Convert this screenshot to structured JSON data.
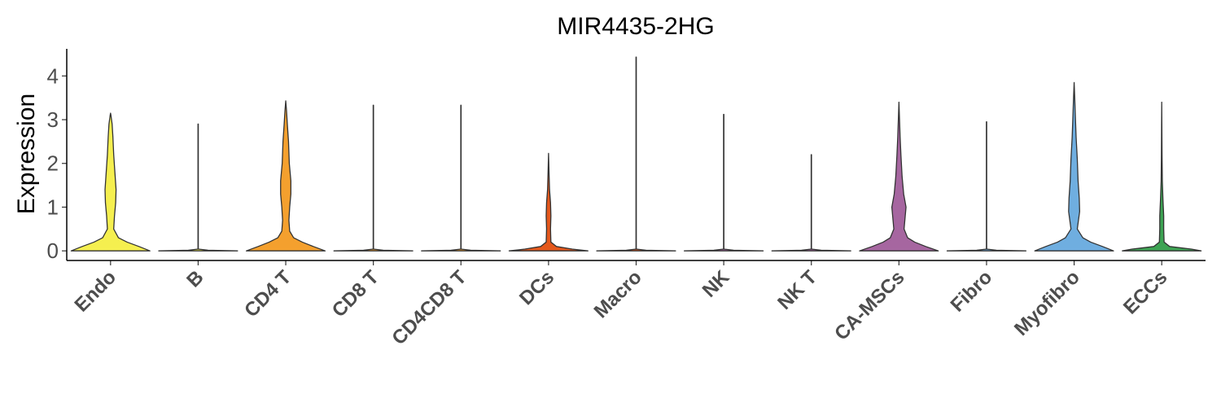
{
  "chart_data": {
    "type": "violin",
    "title": "MIR4435-2HG",
    "xlabel": "",
    "ylabel": "Expression",
    "ylim": [
      -0.22,
      4.62
    ],
    "yticks": [
      0,
      1,
      2,
      3,
      4
    ],
    "grid": false,
    "legend": "none",
    "categories": [
      "Endo",
      "B",
      "CD4 T",
      "CD8 T",
      "CD4CD8 T",
      "DCs",
      "Macro",
      "NK",
      "NK T",
      "CA-MSCs",
      "Fibro",
      "Myofibro",
      "ECCs"
    ],
    "max_values": [
      3.15,
      2.9,
      3.43,
      3.33,
      3.33,
      2.23,
      4.43,
      3.12,
      2.2,
      3.4,
      2.95,
      3.85,
      3.4
    ],
    "series": [
      {
        "category": "Endo",
        "color": "#F5EF4F",
        "profile": [
          [
            0,
            1.0
          ],
          [
            0.1,
            0.72
          ],
          [
            0.2,
            0.42
          ],
          [
            0.3,
            0.2
          ],
          [
            0.5,
            0.08
          ],
          [
            0.8,
            0.1
          ],
          [
            1.1,
            0.13
          ],
          [
            1.4,
            0.14
          ],
          [
            1.8,
            0.11
          ],
          [
            2.2,
            0.08
          ],
          [
            2.6,
            0.06
          ],
          [
            2.9,
            0.04
          ],
          [
            3.1,
            0.01
          ],
          [
            3.15,
            0
          ]
        ]
      },
      {
        "category": "B",
        "color": "#F5EF4F",
        "profile": [
          [
            0,
            1.0
          ],
          [
            0.015,
            0.25
          ],
          [
            0.04,
            0.004
          ],
          [
            2.9,
            0.004
          ],
          [
            2.9,
            0
          ]
        ]
      },
      {
        "category": "CD4 T",
        "color": "#F4A02E",
        "profile": [
          [
            0,
            1.0
          ],
          [
            0.1,
            0.7
          ],
          [
            0.2,
            0.42
          ],
          [
            0.3,
            0.2
          ],
          [
            0.45,
            0.1
          ],
          [
            0.7,
            0.08
          ],
          [
            1.0,
            0.1
          ],
          [
            1.3,
            0.13
          ],
          [
            1.6,
            0.13
          ],
          [
            2.0,
            0.09
          ],
          [
            2.5,
            0.07
          ],
          [
            2.9,
            0.04
          ],
          [
            3.2,
            0.02
          ],
          [
            3.43,
            0
          ]
        ]
      },
      {
        "category": "CD8 T",
        "color": "#F4A02E",
        "profile": [
          [
            0,
            1.0
          ],
          [
            0.015,
            0.25
          ],
          [
            0.04,
            0.004
          ],
          [
            3.33,
            0.004
          ],
          [
            3.33,
            0
          ]
        ]
      },
      {
        "category": "CD4CD8 T",
        "color": "#F4A02E",
        "profile": [
          [
            0,
            1.0
          ],
          [
            0.015,
            0.25
          ],
          [
            0.04,
            0.004
          ],
          [
            3.33,
            0.004
          ],
          [
            3.33,
            0
          ]
        ]
      },
      {
        "category": "DCs",
        "color": "#E4571B",
        "profile": [
          [
            0,
            1.0
          ],
          [
            0.04,
            0.6
          ],
          [
            0.1,
            0.2
          ],
          [
            0.2,
            0.06
          ],
          [
            0.5,
            0.05
          ],
          [
            0.8,
            0.06
          ],
          [
            1.1,
            0.05
          ],
          [
            1.4,
            0.025
          ],
          [
            1.8,
            0.012
          ],
          [
            2.23,
            0
          ]
        ]
      },
      {
        "category": "Macro",
        "color": "#E4571B",
        "profile": [
          [
            0,
            1.0
          ],
          [
            0.015,
            0.25
          ],
          [
            0.04,
            0.004
          ],
          [
            4.43,
            0.004
          ],
          [
            4.43,
            0
          ]
        ]
      },
      {
        "category": "NK",
        "color": "#A666A0",
        "profile": [
          [
            0,
            1.0
          ],
          [
            0.015,
            0.25
          ],
          [
            0.04,
            0.004
          ],
          [
            3.12,
            0.004
          ],
          [
            3.12,
            0
          ]
        ]
      },
      {
        "category": "NK T",
        "color": "#A666A0",
        "profile": [
          [
            0,
            1.0
          ],
          [
            0.015,
            0.25
          ],
          [
            0.04,
            0.004
          ],
          [
            2.2,
            0.004
          ],
          [
            2.2,
            0
          ]
        ]
      },
      {
        "category": "CA-MSCs",
        "color": "#A666A0",
        "profile": [
          [
            0,
            1.0
          ],
          [
            0.1,
            0.68
          ],
          [
            0.2,
            0.4
          ],
          [
            0.3,
            0.22
          ],
          [
            0.5,
            0.13
          ],
          [
            0.8,
            0.16
          ],
          [
            1.0,
            0.18
          ],
          [
            1.3,
            0.12
          ],
          [
            1.7,
            0.08
          ],
          [
            2.2,
            0.05
          ],
          [
            2.6,
            0.03
          ],
          [
            3.0,
            0.015
          ],
          [
            3.4,
            0
          ]
        ]
      },
      {
        "category": "Fibro",
        "color": "#6FAEE0",
        "profile": [
          [
            0,
            1.0
          ],
          [
            0.015,
            0.25
          ],
          [
            0.04,
            0.004
          ],
          [
            2.95,
            0.004
          ],
          [
            2.95,
            0
          ]
        ]
      },
      {
        "category": "Myofibro",
        "color": "#6FAEE0",
        "profile": [
          [
            0,
            1.0
          ],
          [
            0.1,
            0.72
          ],
          [
            0.2,
            0.42
          ],
          [
            0.3,
            0.22
          ],
          [
            0.5,
            0.08
          ],
          [
            0.7,
            0.11
          ],
          [
            0.9,
            0.14
          ],
          [
            1.2,
            0.13
          ],
          [
            1.6,
            0.1
          ],
          [
            2.1,
            0.08
          ],
          [
            2.6,
            0.05
          ],
          [
            3.1,
            0.03
          ],
          [
            3.5,
            0.015
          ],
          [
            3.85,
            0
          ]
        ]
      },
      {
        "category": "ECCs",
        "color": "#3DA353",
        "profile": [
          [
            0,
            1.0
          ],
          [
            0.04,
            0.75
          ],
          [
            0.1,
            0.2
          ],
          [
            0.2,
            0.06
          ],
          [
            0.5,
            0.05
          ],
          [
            0.8,
            0.05
          ],
          [
            1.2,
            0.03
          ],
          [
            1.6,
            0.015
          ],
          [
            2.2,
            0.008
          ],
          [
            3.4,
            0
          ]
        ]
      }
    ]
  }
}
